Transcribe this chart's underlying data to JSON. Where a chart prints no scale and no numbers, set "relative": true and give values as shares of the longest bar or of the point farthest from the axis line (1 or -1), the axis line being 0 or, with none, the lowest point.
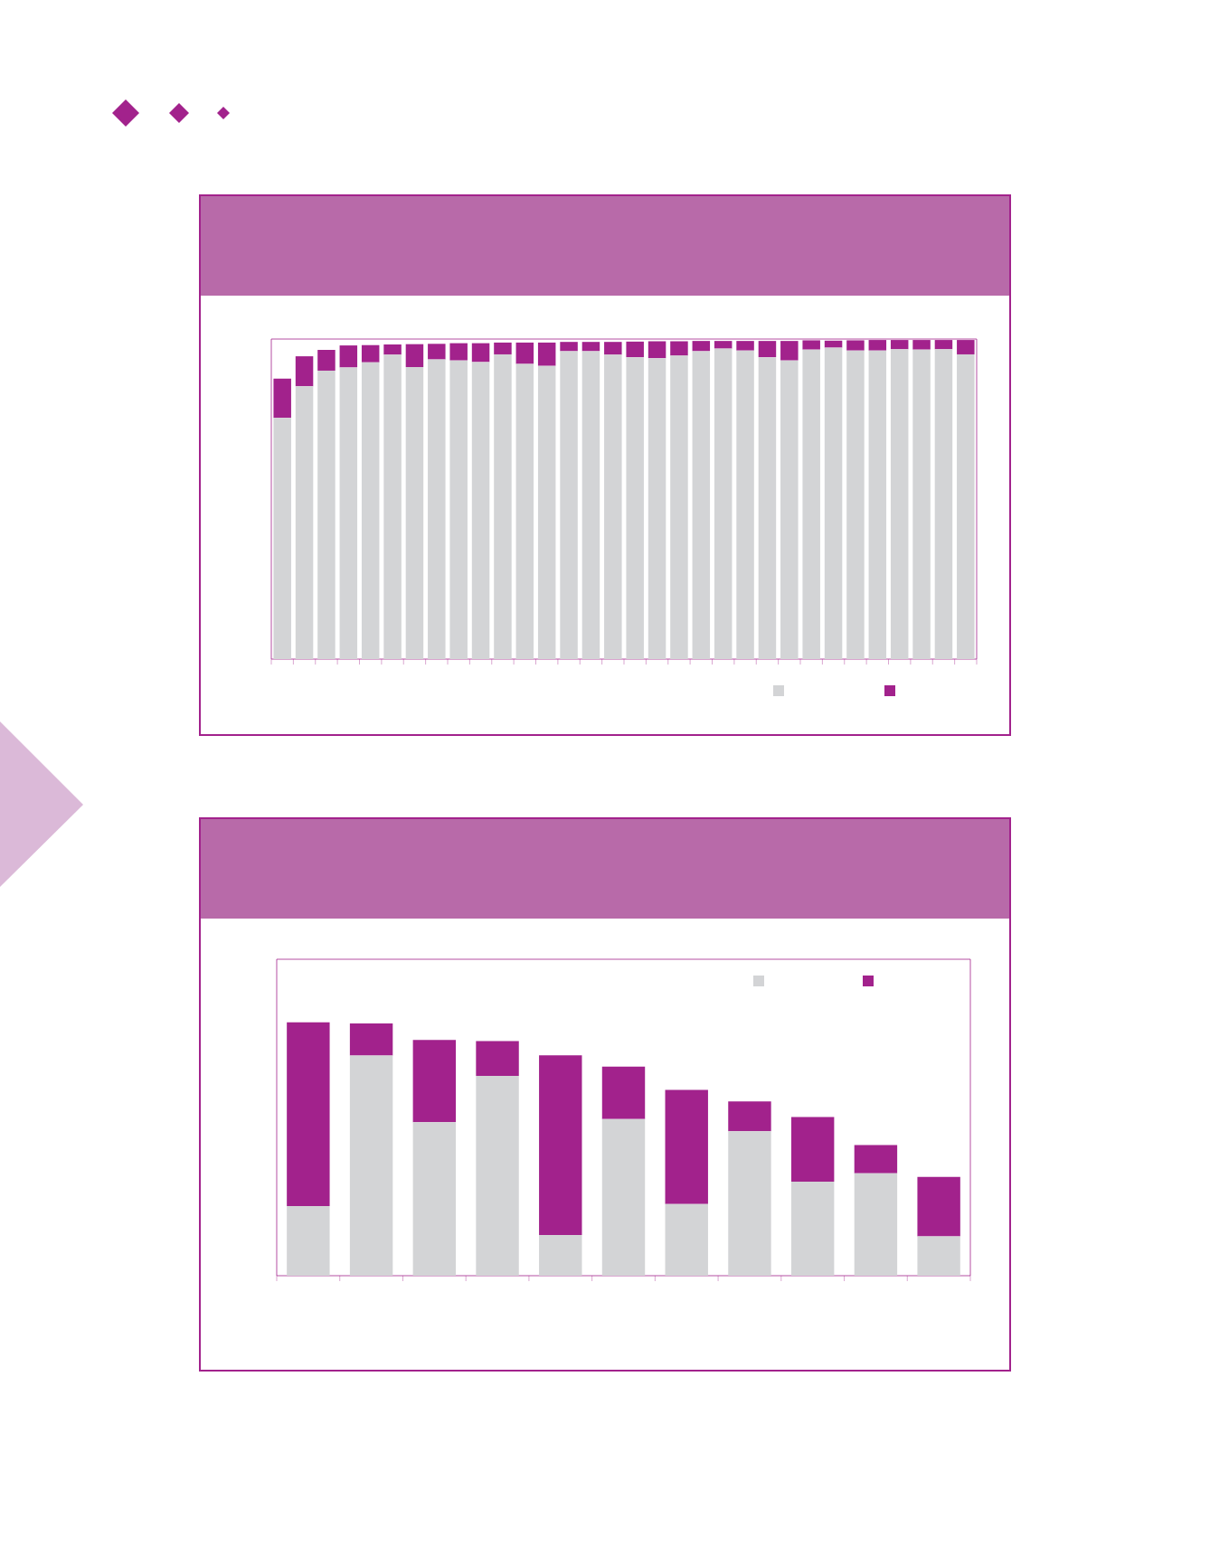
{
  "chart_data": [
    {
      "type": "bar",
      "stacked": true,
      "relative": true,
      "categories": [
        null,
        null,
        null,
        null,
        null,
        null,
        null,
        null,
        null,
        null,
        null,
        null,
        null,
        null,
        null,
        null,
        null,
        null,
        null,
        null,
        null,
        null,
        null,
        null,
        null,
        null,
        null,
        null,
        null,
        null,
        null,
        null
      ],
      "series": [
        {
          "color": "#d3d4d6",
          "values": [
            0.756,
            0.855,
            0.904,
            0.914,
            0.93,
            0.954,
            0.915,
            0.939,
            0.936,
            0.931,
            0.955,
            0.925,
            0.919,
            0.965,
            0.965,
            0.954,
            0.946,
            0.943,
            0.951,
            0.965,
            0.973,
            0.967,
            0.946,
            0.936,
            0.97,
            0.976,
            0.967,
            0.967,
            0.971,
            0.97,
            0.971,
            0.955
          ]
        },
        {
          "color": "#a2228c",
          "values": [
            0.123,
            0.094,
            0.065,
            0.069,
            0.054,
            0.032,
            0.072,
            0.049,
            0.054,
            0.059,
            0.037,
            0.067,
            0.073,
            0.029,
            0.029,
            0.04,
            0.049,
            0.053,
            0.045,
            0.032,
            0.024,
            0.03,
            0.051,
            0.061,
            0.029,
            0.022,
            0.032,
            0.033,
            0.029,
            0.03,
            0.029,
            0.045
          ]
        }
      ]
    },
    {
      "type": "bar",
      "stacked": true,
      "relative": true,
      "categories": [
        null,
        null,
        null,
        null,
        null,
        null,
        null,
        null,
        null,
        null,
        null
      ],
      "series": [
        {
          "color": "#d3d4d6",
          "values": [
            0.275,
            0.869,
            0.606,
            0.789,
            0.161,
            0.618,
            0.283,
            0.57,
            0.371,
            0.404,
            0.155
          ]
        },
        {
          "color": "#a2228c",
          "values": [
            0.725,
            0.127,
            0.325,
            0.137,
            0.709,
            0.207,
            0.45,
            0.118,
            0.255,
            0.112,
            0.235
          ]
        }
      ]
    }
  ]
}
